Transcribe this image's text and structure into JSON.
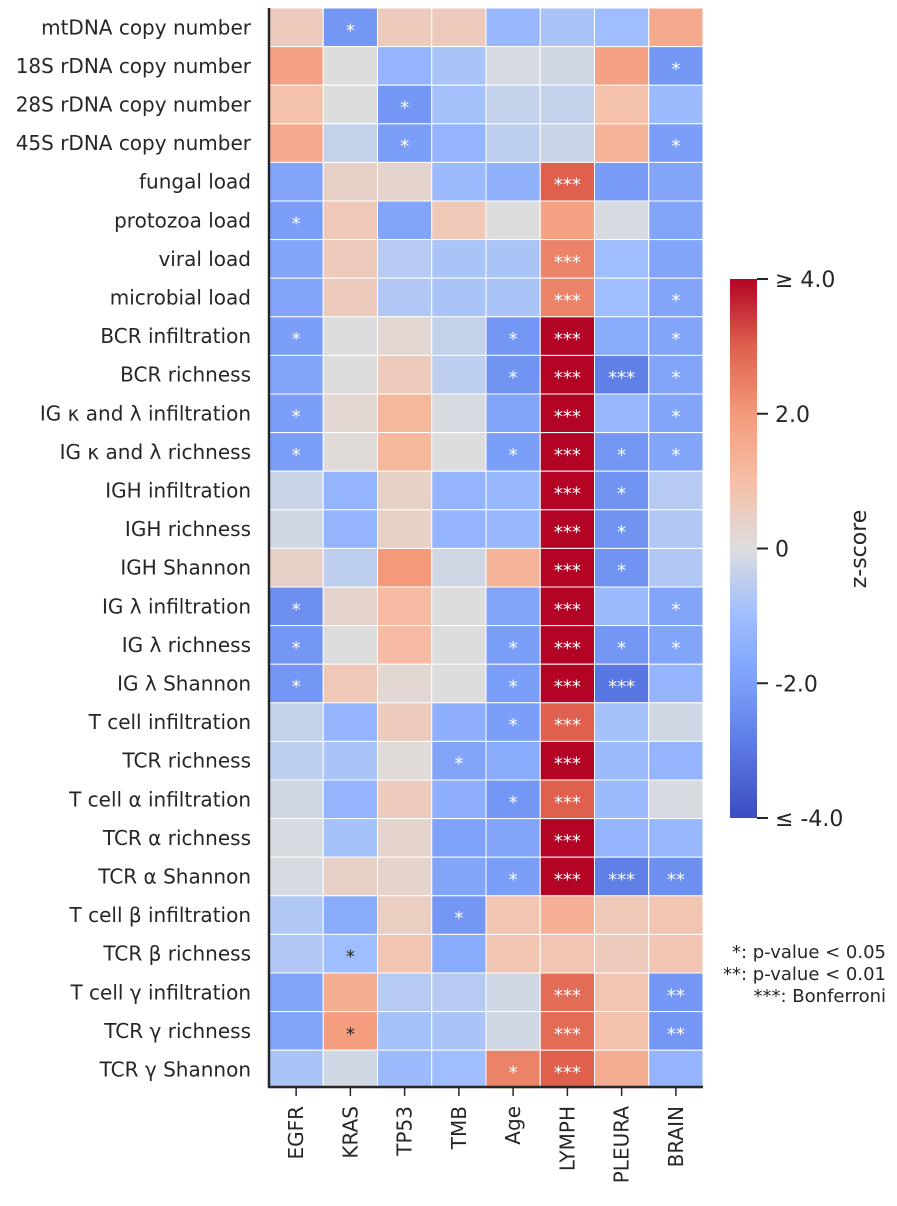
{
  "chart_data": {
    "type": "heatmap",
    "rows": [
      "mtDNA copy number",
      "18S rDNA copy number",
      "28S rDNA copy number",
      "45S rDNA copy number",
      "fungal load",
      "protozoa load",
      "viral load",
      "microbial load",
      "BCR infiltration",
      "BCR richness",
      "IG κ and λ infiltration",
      "IG κ and λ richness",
      "IGH infiltration",
      "IGH richness",
      "IGH Shannon",
      "IG λ infiltration",
      "IG λ richness",
      "IG λ Shannon",
      "T cell infiltration",
      "TCR richness",
      "T cell α infiltration",
      "TCR α richness",
      "TCR α Shannon",
      "T cell β infiltration",
      "TCR β richness",
      "T cell γ infiltration",
      "TCR γ richness",
      "TCR γ Shannon"
    ],
    "columns": [
      "EGFR",
      "KRAS",
      "TP53",
      "TMB",
      "Age",
      "LYMPH",
      "PLEURA",
      "BRAIN"
    ],
    "values": [
      [
        0.6,
        -2.2,
        0.6,
        0.6,
        -1.2,
        -0.8,
        -1.0,
        1.6
      ],
      [
        1.8,
        0.0,
        -1.3,
        -0.8,
        -0.1,
        -0.2,
        1.8,
        -2.2
      ],
      [
        0.9,
        0.0,
        -2.2,
        -0.9,
        -0.4,
        -0.4,
        0.9,
        -1.1
      ],
      [
        1.6,
        -0.4,
        -2.0,
        -1.3,
        -0.5,
        -0.3,
        1.3,
        -2.0
      ],
      [
        -1.8,
        0.4,
        0.3,
        -1.1,
        -1.4,
        3.0,
        -2.1,
        -1.8
      ],
      [
        -2.0,
        0.7,
        -1.8,
        0.7,
        0.0,
        1.8,
        -0.1,
        -1.8
      ],
      [
        -1.8,
        0.6,
        -0.6,
        -0.8,
        -0.8,
        2.4,
        -1.0,
        -1.8
      ],
      [
        -1.8,
        0.6,
        -0.7,
        -0.8,
        -0.8,
        2.4,
        -1.0,
        -1.8
      ],
      [
        -2.0,
        0.0,
        0.2,
        -0.4,
        -2.2,
        4.0,
        -1.6,
        -1.8
      ],
      [
        -1.8,
        0.0,
        0.6,
        -0.5,
        -2.3,
        4.0,
        -2.8,
        -1.8
      ],
      [
        -2.0,
        0.2,
        1.2,
        -0.1,
        -1.8,
        4.0,
        -1.2,
        -1.8
      ],
      [
        -2.0,
        0.1,
        1.2,
        0.0,
        -2.0,
        4.0,
        -2.2,
        -1.8
      ],
      [
        -0.3,
        -1.3,
        0.4,
        -1.3,
        -1.2,
        4.0,
        -2.3,
        -0.6
      ],
      [
        -0.2,
        -1.3,
        0.4,
        -1.3,
        -1.2,
        4.0,
        -2.3,
        -0.7
      ],
      [
        0.4,
        -0.5,
        2.0,
        -0.2,
        1.3,
        4.0,
        -2.3,
        -0.7
      ],
      [
        -2.4,
        0.3,
        1.1,
        0.0,
        -1.8,
        4.0,
        -1.1,
        -1.8
      ],
      [
        -2.2,
        0.0,
        1.1,
        0.0,
        -2.0,
        4.0,
        -2.2,
        -1.8
      ],
      [
        -2.2,
        0.7,
        0.2,
        0.0,
        -2.0,
        4.0,
        -3.0,
        -1.3
      ],
      [
        -0.4,
        -1.3,
        0.6,
        -1.5,
        -2.0,
        3.0,
        -0.9,
        -0.2
      ],
      [
        -0.5,
        -0.8,
        0.1,
        -1.8,
        -1.6,
        4.0,
        -1.1,
        -1.3
      ],
      [
        -0.2,
        -1.3,
        0.6,
        -1.5,
        -2.2,
        3.0,
        -1.1,
        -0.1
      ],
      [
        -0.1,
        -0.9,
        0.3,
        -1.9,
        -1.8,
        4.0,
        -1.3,
        -1.2
      ],
      [
        -0.1,
        0.4,
        0.3,
        -1.8,
        -2.0,
        4.0,
        -2.8,
        -2.4
      ],
      [
        -0.7,
        -1.6,
        0.5,
        -2.2,
        0.8,
        1.4,
        0.7,
        0.8
      ],
      [
        -0.7,
        -1.0,
        0.8,
        -1.6,
        0.8,
        0.8,
        0.6,
        0.8
      ],
      [
        -1.8,
        1.5,
        -0.6,
        -0.6,
        -0.2,
        2.8,
        0.8,
        -2.2
      ],
      [
        -1.8,
        1.9,
        -0.9,
        -0.8,
        -0.2,
        2.8,
        0.9,
        -2.2
      ],
      [
        -0.8,
        -0.2,
        -1.1,
        -1.0,
        2.4,
        3.0,
        1.5,
        -1.3
      ]
    ],
    "significance": [
      [
        "",
        "*",
        "",
        "",
        "",
        "",
        "",
        ""
      ],
      [
        "",
        "",
        "",
        "",
        "",
        "",
        "",
        "*"
      ],
      [
        "",
        "",
        "*",
        "",
        "",
        "",
        "",
        ""
      ],
      [
        "",
        "",
        "*",
        "",
        "",
        "",
        "",
        "*"
      ],
      [
        "",
        "",
        "",
        "",
        "",
        "***",
        "",
        ""
      ],
      [
        "*",
        "",
        "",
        "",
        "",
        "",
        "",
        ""
      ],
      [
        "",
        "",
        "",
        "",
        "",
        "***",
        "",
        ""
      ],
      [
        "",
        "",
        "",
        "",
        "",
        "***",
        "",
        "*"
      ],
      [
        "*",
        "",
        "",
        "",
        "*",
        "***",
        "",
        "*"
      ],
      [
        "",
        "",
        "",
        "",
        "*",
        "***",
        "***",
        "*"
      ],
      [
        "*",
        "",
        "",
        "",
        "",
        "***",
        "",
        "*"
      ],
      [
        "*",
        "",
        "",
        "",
        "*",
        "***",
        "*",
        "*"
      ],
      [
        "",
        "",
        "",
        "",
        "",
        "***",
        "*",
        ""
      ],
      [
        "",
        "",
        "",
        "",
        "",
        "***",
        "*",
        ""
      ],
      [
        "",
        "",
        "",
        "",
        "",
        "***",
        "*",
        ""
      ],
      [
        "*",
        "",
        "",
        "",
        "",
        "***",
        "",
        "*"
      ],
      [
        "*",
        "",
        "",
        "",
        "*",
        "***",
        "*",
        "*"
      ],
      [
        "*",
        "",
        "",
        "",
        "*",
        "***",
        "***",
        ""
      ],
      [
        "",
        "",
        "",
        "",
        "*",
        "***",
        "",
        ""
      ],
      [
        "",
        "",
        "",
        "*",
        "",
        "***",
        "",
        ""
      ],
      [
        "",
        "",
        "",
        "",
        "*",
        "***",
        "",
        ""
      ],
      [
        "",
        "",
        "",
        "",
        "",
        "***",
        "",
        ""
      ],
      [
        "",
        "",
        "",
        "",
        "*",
        "***",
        "***",
        "**"
      ],
      [
        "",
        "",
        "",
        "*",
        "",
        "",
        "",
        ""
      ],
      [
        "",
        "*",
        "",
        "",
        "",
        "",
        "",
        ""
      ],
      [
        "",
        "",
        "",
        "",
        "",
        "***",
        "",
        "**"
      ],
      [
        "",
        "*",
        "",
        "",
        "",
        "***",
        "",
        "**"
      ],
      [
        "",
        "",
        "",
        "",
        "*",
        "***",
        "",
        ""
      ]
    ],
    "color_range": [
      -4,
      4
    ],
    "colormap": "coolwarm",
    "colorbar": {
      "label": "z-score",
      "ticks": [
        4,
        2,
        0,
        -2,
        -4
      ],
      "tick_labels": [
        "≥ 4.0",
        "2.0",
        "0",
        "-2.0",
        "≤ -4.0"
      ]
    },
    "legend_notes": [
      "*: p-value < 0.05",
      "**: p-value < 0.01",
      "***: Bonferroni"
    ]
  }
}
